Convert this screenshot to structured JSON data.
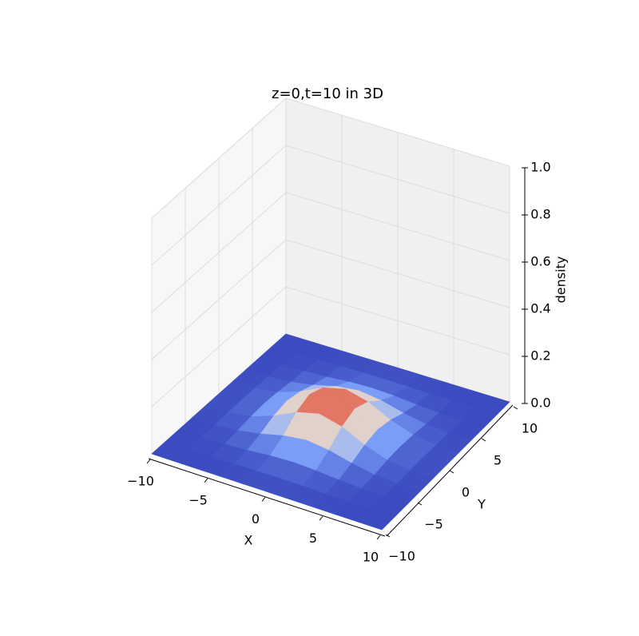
{
  "chart_data": {
    "type": "surface",
    "title": "z=0,t=10 in 3D",
    "xlabel": "X",
    "ylabel": "Y",
    "zlabel": "density",
    "colormap": "coolwarm",
    "x": [
      -10,
      -8,
      -6,
      -4,
      -2,
      0,
      2,
      4,
      6,
      8,
      10
    ],
    "y": [
      -10,
      -8,
      -6,
      -4,
      -2,
      0,
      2,
      4,
      6,
      8,
      10
    ],
    "z": [
      [
        0,
        0,
        0.0001,
        0.0002,
        0.0005,
        0.0006,
        0.0005,
        0.0002,
        0.0001,
        0,
        0
      ],
      [
        0,
        0.0001,
        0.0006,
        0.0018,
        0.0034,
        0.0043,
        0.0034,
        0.0018,
        0.0006,
        0.0001,
        0
      ],
      [
        0.0001,
        0.0006,
        0.0027,
        0.0083,
        0.0162,
        0.0203,
        0.0162,
        0.0083,
        0.0027,
        0.0006,
        0.0001
      ],
      [
        0.0002,
        0.0018,
        0.0083,
        0.0254,
        0.0494,
        0.0617,
        0.0494,
        0.0254,
        0.0083,
        0.0018,
        0.0002
      ],
      [
        0.0005,
        0.0034,
        0.0162,
        0.0494,
        0.0962,
        0.1201,
        0.0962,
        0.0494,
        0.0162,
        0.0034,
        0.0005
      ],
      [
        0.0006,
        0.0043,
        0.0203,
        0.0617,
        0.1201,
        0.15,
        0.1201,
        0.0617,
        0.0203,
        0.0043,
        0.0006
      ],
      [
        0.0005,
        0.0034,
        0.0162,
        0.0494,
        0.0962,
        0.1201,
        0.0962,
        0.0494,
        0.0162,
        0.0034,
        0.0005
      ],
      [
        0.0002,
        0.0018,
        0.0083,
        0.0254,
        0.0494,
        0.0617,
        0.0494,
        0.0254,
        0.0083,
        0.0018,
        0.0002
      ],
      [
        0.0001,
        0.0006,
        0.0027,
        0.0083,
        0.0162,
        0.0203,
        0.0162,
        0.0083,
        0.0027,
        0.0006,
        0.0001
      ],
      [
        0,
        0.0001,
        0.0006,
        0.0018,
        0.0034,
        0.0043,
        0.0034,
        0.0018,
        0.0006,
        0.0001,
        0
      ],
      [
        0,
        0,
        0.0001,
        0.0002,
        0.0005,
        0.0006,
        0.0005,
        0.0002,
        0.0001,
        0,
        0
      ]
    ],
    "xlim": [
      -10,
      10
    ],
    "ylim": [
      -10,
      10
    ],
    "zlim": [
      0,
      1
    ],
    "xticks": [
      {
        "value": -10,
        "label": "−10"
      },
      {
        "value": -5,
        "label": "−5"
      },
      0,
      5,
      10
    ],
    "yticks": [
      {
        "value": -10,
        "label": "−10"
      },
      {
        "value": -5,
        "label": "−5"
      },
      0,
      5,
      10
    ],
    "zticks": [
      {
        "value": 0,
        "label": "0.0"
      },
      0.2,
      0.4,
      0.6,
      0.8,
      {
        "value": 1,
        "label": "1.0"
      }
    ],
    "grid": true
  }
}
